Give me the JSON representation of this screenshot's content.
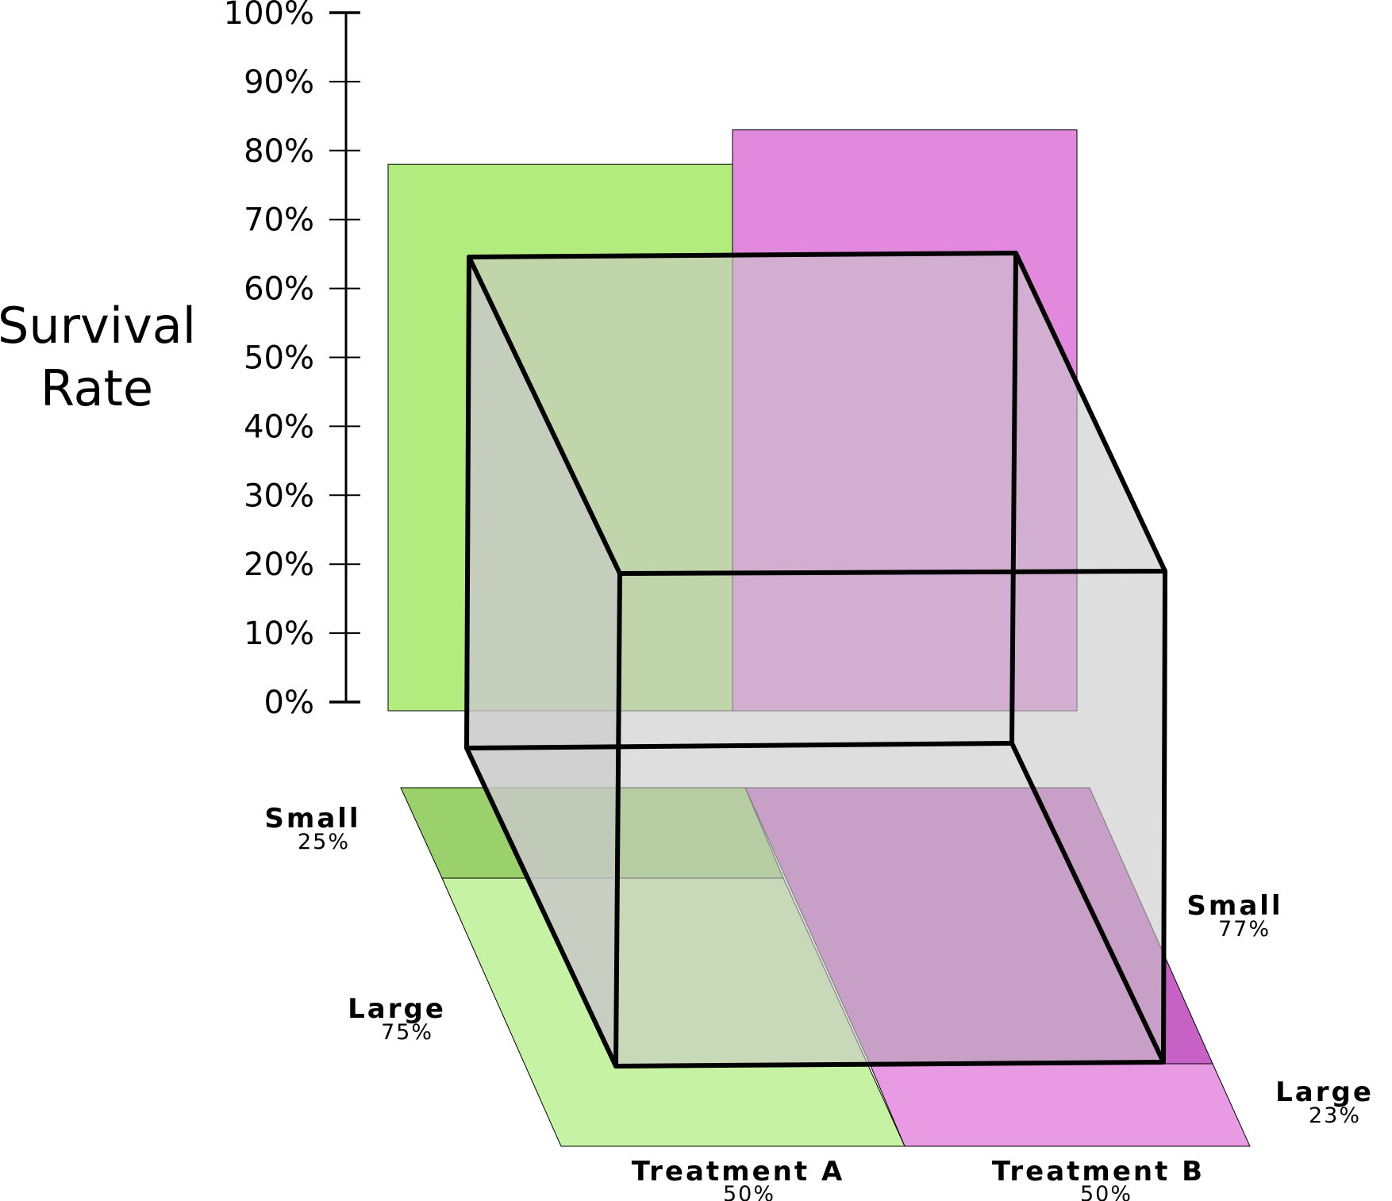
{
  "axis": {
    "title_line1": "Survival",
    "title_line2": "Rate",
    "ticks": [
      "0%",
      "10%",
      "20%",
      "30%",
      "40%",
      "50%",
      "60%",
      "70%",
      "80%",
      "90%",
      "100%"
    ]
  },
  "treatments": [
    {
      "label": "Treatment A",
      "pct": "50%",
      "survival_pct": 78
    },
    {
      "label": "Treatment B",
      "pct": "50%",
      "survival_pct": 83
    }
  ],
  "groups_a": [
    {
      "label": "Small",
      "pct": "25%"
    },
    {
      "label": "Large",
      "pct": "75%"
    }
  ],
  "groups_b": [
    {
      "label": "Small",
      "pct": "77%"
    },
    {
      "label": "Large",
      "pct": "23%"
    }
  ],
  "colors": {
    "green_bar": "#b3ec7e",
    "magenta_bar": "#e289dd",
    "green_small": "#9bd16a",
    "green_large": "#c6f2a4",
    "magenta_small": "#c861c6",
    "magenta_large": "#e89be3",
    "box_fill": "#c8c8c8"
  }
}
